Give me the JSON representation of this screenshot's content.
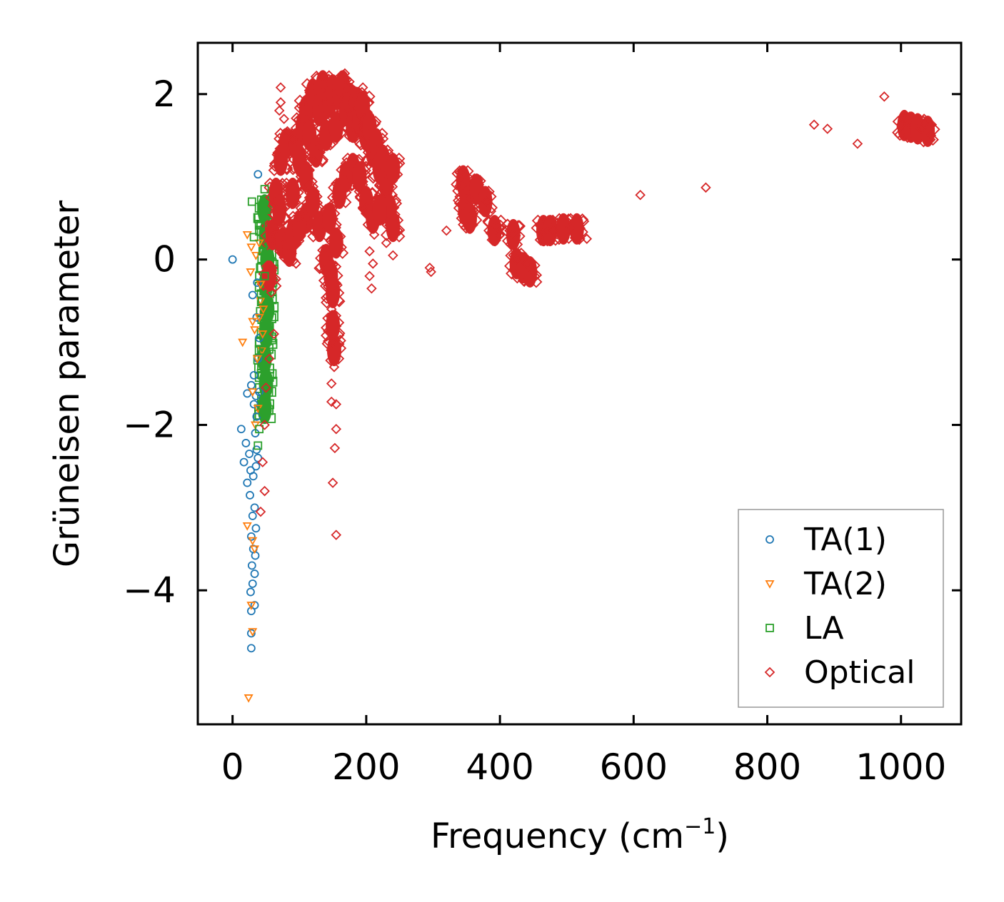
{
  "chart_data": {
    "type": "scatter",
    "xlabel": "Frequency (cm",
    "xlabel_sup": "−1",
    "xlabel_close": ")",
    "ylabel": "Grüneisen parameter",
    "xlim": [
      -52,
      1090
    ],
    "ylim": [
      -5.62,
      2.62
    ],
    "xticks": [
      0,
      200,
      400,
      600,
      800,
      1000
    ],
    "xtick_labels": [
      "0",
      "200",
      "400",
      "600",
      "800",
      "1000"
    ],
    "yticks": [
      2,
      0,
      -2,
      -4
    ],
    "ytick_labels": [
      "2",
      "0",
      "−2",
      "−4"
    ],
    "legend_position": "bottom-right",
    "series": [
      {
        "name": "TA(1)",
        "marker": "circle",
        "color": "#1f77b4",
        "points": [
          [
            0,
            0
          ],
          [
            38,
            1.03
          ],
          [
            30,
            -0.43
          ],
          [
            37,
            -0.28
          ],
          [
            40,
            -0.95
          ],
          [
            38,
            -1.2
          ],
          [
            22,
            -1.62
          ],
          [
            35,
            -1.65
          ],
          [
            28,
            -1.52
          ],
          [
            32,
            -1.75
          ],
          [
            13,
            -2.05
          ],
          [
            20,
            -2.22
          ],
          [
            25,
            -2.35
          ],
          [
            17,
            -2.45
          ],
          [
            27,
            -2.55
          ],
          [
            31,
            -2.62
          ],
          [
            35,
            -2.5
          ],
          [
            38,
            -2.4
          ],
          [
            22,
            -2.7
          ],
          [
            26,
            -2.85
          ],
          [
            33,
            -3.0
          ],
          [
            30,
            -3.1
          ],
          [
            35,
            -3.25
          ],
          [
            28,
            -3.35
          ],
          [
            31,
            -3.5
          ],
          [
            34,
            -3.58
          ],
          [
            29,
            -3.7
          ],
          [
            33,
            -3.8
          ],
          [
            30,
            -3.92
          ],
          [
            27,
            -4.02
          ],
          [
            33,
            -4.18
          ],
          [
            28,
            -4.25
          ],
          [
            28,
            -4.52
          ],
          [
            28,
            -4.7
          ],
          [
            36,
            -1.9
          ],
          [
            34,
            -2.1
          ],
          [
            36,
            -2.3
          ],
          [
            40,
            -1.6
          ],
          [
            32,
            -1.4
          ],
          [
            36,
            -0.7
          ]
        ]
      },
      {
        "name": "TA(2)",
        "marker": "triangle",
        "color": "#ff7f0e",
        "points": [
          [
            22,
            0.3
          ],
          [
            28,
            0.15
          ],
          [
            35,
            0.05
          ],
          [
            40,
            0.2
          ],
          [
            27,
            -0.15
          ],
          [
            42,
            -0.3
          ],
          [
            30,
            -0.75
          ],
          [
            40,
            -0.7
          ],
          [
            33,
            -0.85
          ],
          [
            45,
            -0.9
          ],
          [
            15,
            -1.0
          ],
          [
            37,
            -1.2
          ],
          [
            44,
            -1.1
          ],
          [
            30,
            -1.6
          ],
          [
            38,
            -1.8
          ],
          [
            34,
            -2.0
          ],
          [
            22,
            -3.22
          ],
          [
            30,
            -3.4
          ],
          [
            33,
            -3.5
          ],
          [
            28,
            -4.18
          ],
          [
            30,
            -4.5
          ],
          [
            24,
            -5.3
          ],
          [
            42,
            -0.5
          ],
          [
            46,
            -0.6
          ]
        ]
      },
      {
        "name": "LA",
        "marker": "square",
        "color": "#2ca02c",
        "points": [
          [
            29,
            0.7
          ],
          [
            48,
            0.85
          ],
          [
            32,
            0.27
          ],
          [
            42,
            0.42
          ],
          [
            50,
            0.6
          ],
          [
            45,
            0.1
          ],
          [
            48,
            -0.2
          ],
          [
            44,
            -0.5
          ],
          [
            49,
            -0.8
          ],
          [
            46,
            -1.1
          ],
          [
            44,
            -1.4
          ],
          [
            48,
            -1.6
          ],
          [
            46,
            -1.85
          ],
          [
            40,
            -2.05
          ],
          [
            38,
            -2.25
          ]
        ]
      },
      {
        "name": "Optical",
        "marker": "diamond",
        "color": "#d62728",
        "points": [
          [
            72,
            2.08
          ],
          [
            72,
            1.9
          ],
          [
            70,
            1.8
          ],
          [
            77,
            1.7
          ],
          [
            82,
            1.55
          ],
          [
            90,
            1.45
          ],
          [
            135,
            2.22
          ],
          [
            168,
            2.25
          ],
          [
            195,
            2.08
          ],
          [
            175,
            2.15
          ],
          [
            60,
            0.65
          ],
          [
            65,
            0.4
          ],
          [
            60,
            -0.1
          ],
          [
            58,
            -0.4
          ],
          [
            62,
            -0.9
          ],
          [
            55,
            -1.2
          ],
          [
            50,
            -1.55
          ],
          [
            48,
            -2.0
          ],
          [
            45,
            -2.45
          ],
          [
            48,
            -2.8
          ],
          [
            42,
            -3.05
          ],
          [
            115,
            0.9
          ],
          [
            120,
            1.2
          ],
          [
            100,
            0.5
          ],
          [
            95,
            -0.05
          ],
          [
            145,
            -0.2
          ],
          [
            148,
            -0.6
          ],
          [
            150,
            -1.0
          ],
          [
            152,
            -1.3
          ],
          [
            148,
            -1.5
          ],
          [
            155,
            -1.75
          ],
          [
            148,
            -1.72
          ],
          [
            155,
            -2.05
          ],
          [
            153,
            -2.28
          ],
          [
            150,
            -2.7
          ],
          [
            155,
            -3.33
          ],
          [
            205,
            0.1
          ],
          [
            210,
            -0.05
          ],
          [
            205,
            -0.2
          ],
          [
            208,
            -0.35
          ],
          [
            212,
            0.3
          ],
          [
            230,
            0.2
          ],
          [
            240,
            0.05
          ],
          [
            295,
            -0.1
          ],
          [
            297,
            -0.15
          ],
          [
            320,
            0.35
          ],
          [
            340,
            1.05
          ],
          [
            345,
            0.9
          ],
          [
            355,
            0.75
          ],
          [
            360,
            0.55
          ],
          [
            352,
            0.4
          ],
          [
            380,
            0.7
          ],
          [
            395,
            0.4
          ],
          [
            400,
            0.3
          ],
          [
            420,
            0.3
          ],
          [
            425,
            0.0
          ],
          [
            440,
            -0.05
          ],
          [
            450,
            -0.15
          ],
          [
            470,
            0.35
          ],
          [
            480,
            0.35
          ],
          [
            505,
            0.38
          ],
          [
            530,
            0.25
          ],
          [
            610,
            0.78
          ],
          [
            708,
            0.87
          ],
          [
            870,
            1.63
          ],
          [
            890,
            1.58
          ],
          [
            935,
            1.4
          ],
          [
            975,
            1.97
          ],
          [
            1000,
            1.63
          ],
          [
            1030,
            1.58
          ],
          [
            1045,
            1.5
          ],
          [
            1035,
            1.65
          ]
        ]
      }
    ],
    "dense_regions": [
      {
        "series": "LA",
        "points": [
          [
            48,
            0.6
          ],
          [
            50,
            0.3
          ],
          [
            52,
            0.0
          ],
          [
            50,
            -0.3
          ],
          [
            52,
            -0.6
          ],
          [
            50,
            -0.9
          ],
          [
            48,
            -1.2
          ],
          [
            50,
            -1.5
          ],
          [
            48,
            -1.8
          ]
        ]
      },
      {
        "series": "Optical",
        "points": [
          [
            55,
            -0.2
          ],
          [
            60,
            0.3
          ],
          [
            65,
            0.8
          ],
          [
            72,
            1.2
          ],
          [
            80,
            1.4
          ],
          [
            90,
            0.8
          ],
          [
            95,
            1.4
          ],
          [
            100,
            1.2
          ],
          [
            105,
            1.6
          ],
          [
            110,
            1.8
          ],
          [
            115,
            1.5
          ],
          [
            118,
            1.9
          ],
          [
            120,
            2.0
          ],
          [
            125,
            1.3
          ],
          [
            130,
            1.8
          ],
          [
            135,
            2.1
          ],
          [
            140,
            1.5
          ],
          [
            145,
            1.9
          ],
          [
            150,
            2.05
          ],
          [
            155,
            1.6
          ],
          [
            160,
            2.0
          ],
          [
            165,
            2.1
          ],
          [
            170,
            1.8
          ],
          [
            175,
            1.95
          ],
          [
            180,
            1.6
          ],
          [
            185,
            1.9
          ],
          [
            190,
            1.7
          ],
          [
            195,
            1.85
          ],
          [
            200,
            1.5
          ],
          [
            205,
            1.6
          ],
          [
            210,
            1.3
          ],
          [
            215,
            1.4
          ],
          [
            220,
            1.1
          ],
          [
            225,
            1.2
          ],
          [
            230,
            0.9
          ],
          [
            235,
            0.6
          ],
          [
            240,
            0.4
          ],
          [
            110,
            0.5
          ],
          [
            120,
            0.7
          ],
          [
            130,
            0.4
          ],
          [
            140,
            0.0
          ],
          [
            145,
            0.5
          ],
          [
            150,
            -0.4
          ],
          [
            155,
            0.2
          ],
          [
            160,
            0.8
          ],
          [
            170,
            1.0
          ],
          [
            180,
            1.1
          ],
          [
            190,
            1.0
          ],
          [
            200,
            0.7
          ],
          [
            210,
            0.5
          ],
          [
            220,
            0.6
          ],
          [
            230,
            1.0
          ],
          [
            240,
            1.1
          ],
          [
            75,
            0.2
          ],
          [
            85,
            0.1
          ],
          [
            70,
            0.6
          ],
          [
            90,
            0.3
          ],
          [
            100,
            0.4
          ],
          [
            110,
            1.0
          ],
          [
            150,
            -0.8
          ],
          [
            152,
            -1.1
          ],
          [
            147,
            -0.2
          ],
          [
            345,
            0.95
          ],
          [
            350,
            0.8
          ],
          [
            348,
            0.6
          ],
          [
            355,
            0.5
          ],
          [
            365,
            0.85
          ],
          [
            378,
            0.7
          ],
          [
            392,
            0.35
          ],
          [
            420,
            0.3
          ],
          [
            425,
            -0.05
          ],
          [
            435,
            -0.1
          ],
          [
            445,
            -0.15
          ],
          [
            465,
            0.35
          ],
          [
            475,
            0.35
          ],
          [
            495,
            0.37
          ],
          [
            515,
            0.37
          ],
          [
            1005,
            1.62
          ],
          [
            1015,
            1.6
          ],
          [
            1025,
            1.58
          ],
          [
            1040,
            1.55
          ]
        ]
      }
    ]
  }
}
